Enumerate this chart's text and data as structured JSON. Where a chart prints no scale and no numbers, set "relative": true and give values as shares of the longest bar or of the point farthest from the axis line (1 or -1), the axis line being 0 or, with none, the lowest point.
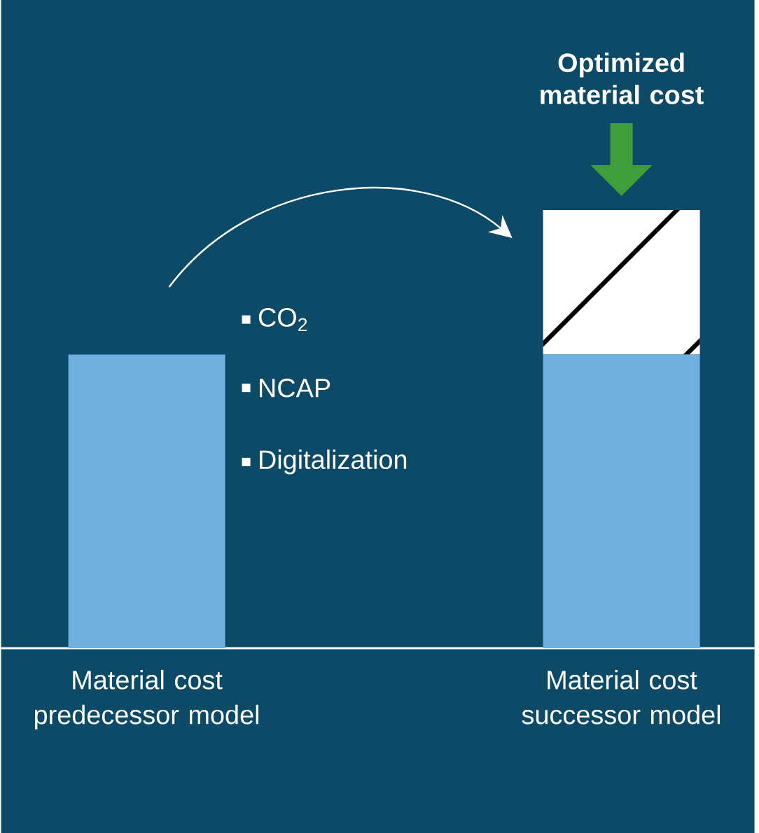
{
  "chart_data": {
    "type": "bar",
    "relative": true,
    "stacked": true,
    "categories": [
      "Material cost predecessor model",
      "Material  cost successor model"
    ],
    "series": [
      {
        "color": "#6fb0de",
        "values": [
          0.67,
          0.67
        ]
      },
      {
        "color": "#ffffff",
        "values": [
          0,
          0.33
        ]
      }
    ],
    "annotations": [
      "Optimized material cost",
      "CO$_{2}$",
      "NCAP",
      "Digitalization"
    ]
  }
}
